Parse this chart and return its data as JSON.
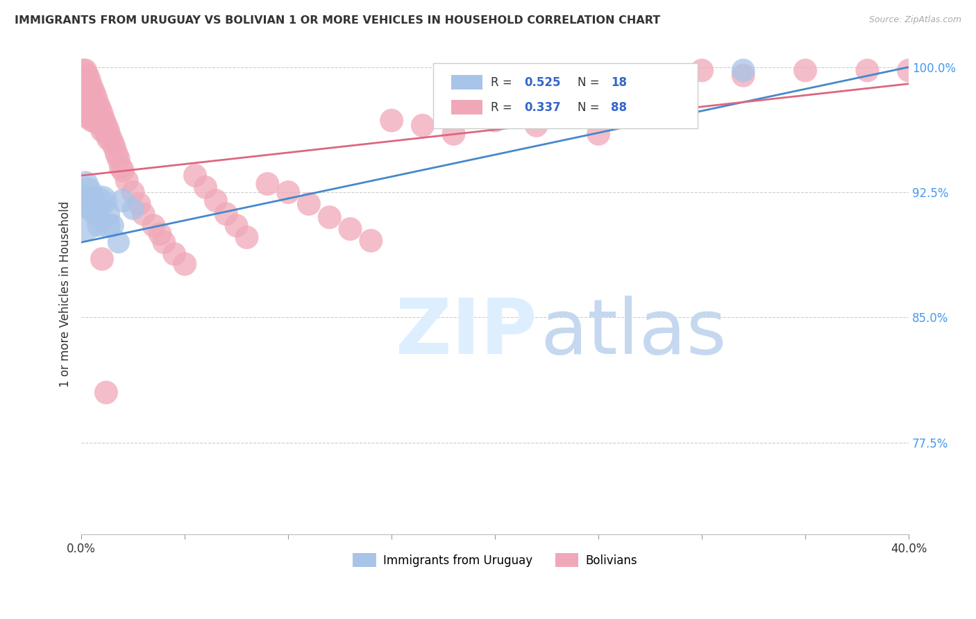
{
  "title": "IMMIGRANTS FROM URUGUAY VS BOLIVIAN 1 OR MORE VEHICLES IN HOUSEHOLD CORRELATION CHART",
  "source": "Source: ZipAtlas.com",
  "ylabel_label": "1 or more Vehicles in Household",
  "legend_label1": "Immigrants from Uruguay",
  "legend_label2": "Bolivians",
  "R_uruguay": 0.525,
  "N_uruguay": 18,
  "R_bolivian": 0.337,
  "N_bolivian": 88,
  "color_uruguay": "#a8c4e8",
  "color_bolivian": "#f0a8b8",
  "line_color_uruguay": "#4488cc",
  "line_color_bolivian": "#dd6680",
  "xlim": [
    0.0,
    0.4
  ],
  "ylim": [
    0.72,
    1.008
  ],
  "yticks": [
    0.775,
    0.85,
    0.925,
    1.0
  ],
  "ytick_labels": [
    "77.5%",
    "85.0%",
    "92.5%",
    "100.0%"
  ],
  "uruguay_x": [
    0.001,
    0.002,
    0.003,
    0.003,
    0.004,
    0.005,
    0.006,
    0.007,
    0.008,
    0.009,
    0.01,
    0.012,
    0.013,
    0.015,
    0.018,
    0.02,
    0.025,
    0.32
  ],
  "uruguay_y": [
    0.91,
    0.93,
    0.925,
    0.92,
    0.915,
    0.92,
    0.918,
    0.912,
    0.905,
    0.92,
    0.92,
    0.912,
    0.905,
    0.905,
    0.895,
    0.92,
    0.915,
    0.998
  ],
  "uruguay_size": [
    200,
    60,
    80,
    70,
    50,
    65,
    70,
    55,
    45,
    60,
    80,
    70,
    55,
    50,
    45,
    50,
    45,
    50
  ],
  "bolivian_x": [
    0.001,
    0.001,
    0.001,
    0.002,
    0.002,
    0.002,
    0.002,
    0.002,
    0.003,
    0.003,
    0.003,
    0.003,
    0.003,
    0.003,
    0.004,
    0.004,
    0.004,
    0.004,
    0.004,
    0.005,
    0.005,
    0.005,
    0.005,
    0.005,
    0.006,
    0.006,
    0.006,
    0.006,
    0.007,
    0.007,
    0.007,
    0.007,
    0.008,
    0.008,
    0.008,
    0.009,
    0.009,
    0.01,
    0.01,
    0.01,
    0.011,
    0.011,
    0.012,
    0.012,
    0.013,
    0.013,
    0.014,
    0.015,
    0.016,
    0.017,
    0.018,
    0.019,
    0.02,
    0.022,
    0.025,
    0.028,
    0.03,
    0.035,
    0.038,
    0.04,
    0.045,
    0.05,
    0.055,
    0.06,
    0.065,
    0.07,
    0.075,
    0.08,
    0.09,
    0.1,
    0.11,
    0.12,
    0.13,
    0.14,
    0.15,
    0.165,
    0.18,
    0.2,
    0.22,
    0.25,
    0.27,
    0.3,
    0.32,
    0.35,
    0.38,
    0.4,
    0.01,
    0.012
  ],
  "bolivian_y": [
    0.998,
    0.993,
    0.988,
    0.998,
    0.993,
    0.988,
    0.982,
    0.976,
    0.995,
    0.99,
    0.985,
    0.98,
    0.975,
    0.97,
    0.992,
    0.987,
    0.982,
    0.977,
    0.972,
    0.988,
    0.983,
    0.978,
    0.973,
    0.968,
    0.985,
    0.98,
    0.975,
    0.97,
    0.982,
    0.977,
    0.972,
    0.967,
    0.978,
    0.973,
    0.968,
    0.975,
    0.97,
    0.972,
    0.967,
    0.962,
    0.968,
    0.963,
    0.965,
    0.96,
    0.962,
    0.957,
    0.958,
    0.955,
    0.952,
    0.948,
    0.945,
    0.94,
    0.938,
    0.932,
    0.925,
    0.918,
    0.912,
    0.905,
    0.9,
    0.895,
    0.888,
    0.882,
    0.935,
    0.928,
    0.92,
    0.912,
    0.905,
    0.898,
    0.93,
    0.925,
    0.918,
    0.91,
    0.903,
    0.896,
    0.968,
    0.965,
    0.96,
    0.968,
    0.965,
    0.96,
    0.995,
    0.998,
    0.995,
    0.998,
    0.998,
    0.998,
    0.885,
    0.805
  ],
  "bolivian_size": [
    50,
    50,
    50,
    50,
    50,
    50,
    50,
    50,
    50,
    50,
    50,
    50,
    50,
    50,
    50,
    50,
    50,
    50,
    50,
    50,
    50,
    50,
    50,
    50,
    50,
    50,
    50,
    50,
    50,
    50,
    50,
    50,
    50,
    50,
    50,
    50,
    50,
    50,
    50,
    50,
    50,
    50,
    50,
    50,
    50,
    50,
    50,
    50,
    50,
    50,
    50,
    50,
    50,
    50,
    50,
    50,
    50,
    50,
    50,
    50,
    50,
    50,
    50,
    50,
    50,
    50,
    50,
    50,
    50,
    50,
    50,
    50,
    50,
    50,
    50,
    50,
    50,
    50,
    50,
    50,
    50,
    50,
    50,
    50,
    50,
    50,
    50,
    50
  ]
}
